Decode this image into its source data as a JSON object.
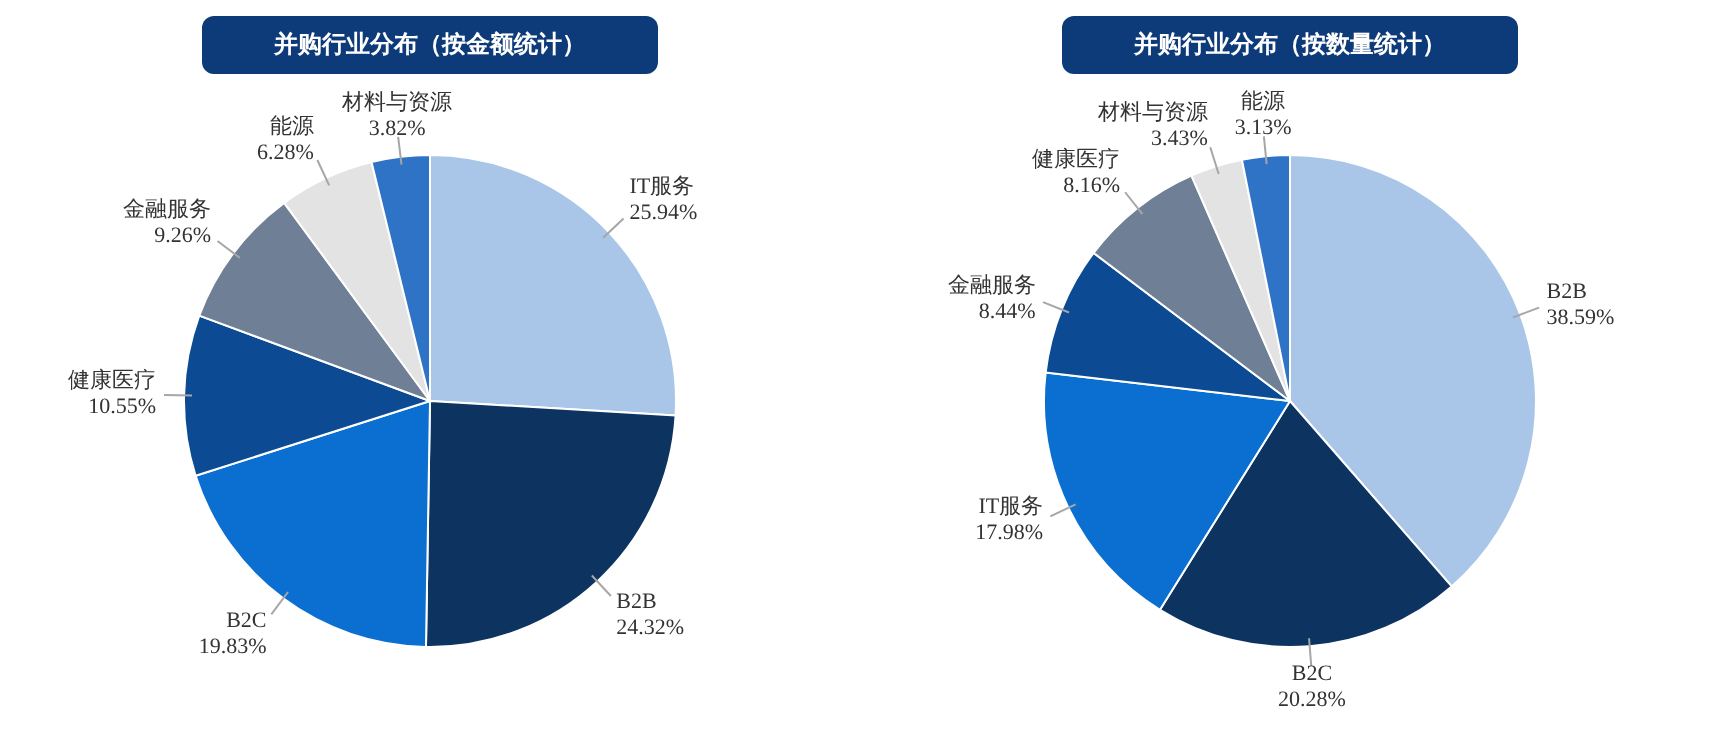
{
  "chart_data": [
    {
      "type": "pie",
      "title": "并购行业分布（按金额统计）",
      "categories": [
        "IT服务",
        "B2B",
        "B2C",
        "健康医疗",
        "金融服务",
        "能源",
        "材料与资源"
      ],
      "values": [
        25.94,
        24.32,
        19.83,
        10.55,
        9.26,
        6.28,
        3.82
      ],
      "value_labels": [
        "25.94%",
        "24.32%",
        "19.83%",
        "10.55%",
        "9.26%",
        "6.28%",
        "3.82%"
      ],
      "colors": [
        "#a9c6e8",
        "#0d3461",
        "#0a6fd0",
        "#0c4a94",
        "#6e7f96",
        "#e3e3e3",
        "#2e73c6"
      ],
      "legend": false
    },
    {
      "type": "pie",
      "title": "并购行业分布（按数量统计）",
      "categories": [
        "B2B",
        "B2C",
        "IT服务",
        "金融服务",
        "健康医疗",
        "材料与资源",
        "能源"
      ],
      "values": [
        38.59,
        20.28,
        17.98,
        8.44,
        8.16,
        3.43,
        3.13
      ],
      "value_labels": [
        "38.59%",
        "20.28%",
        "17.98%",
        "8.44%",
        "8.16%",
        "3.43%",
        "3.13%"
      ],
      "colors": [
        "#a9c6e8",
        "#0d3461",
        "#0a6fd0",
        "#0c4a94",
        "#6e7f96",
        "#e3e3e3",
        "#2e73c6"
      ],
      "legend": false
    }
  ]
}
